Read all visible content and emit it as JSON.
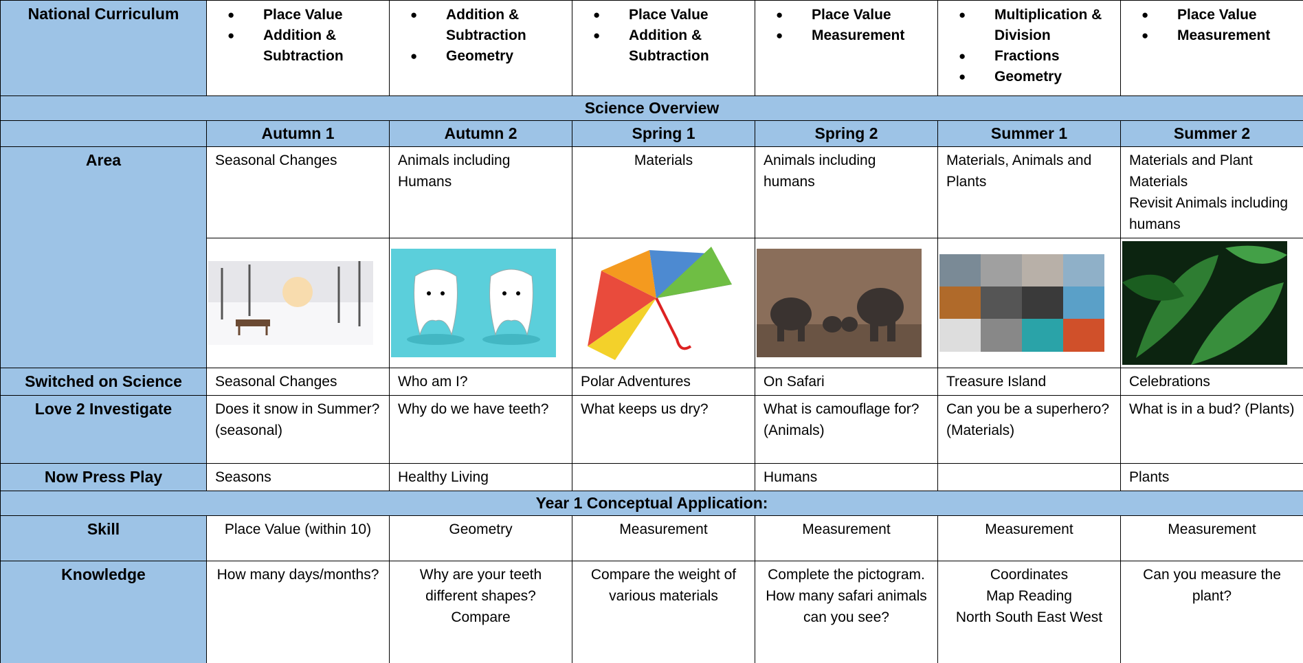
{
  "national_curriculum": {
    "label": "National Curriculum",
    "cells": [
      [
        "Place Value",
        "Addition & Subtraction"
      ],
      [
        "Addition & Subtraction",
        "Geometry"
      ],
      [
        "Place Value",
        "Addition & Subtraction"
      ],
      [
        "Place Value",
        "Measurement"
      ],
      [
        "Multiplication & Division",
        "Fractions",
        "Geometry"
      ],
      [
        "Place Value",
        "Measurement"
      ]
    ]
  },
  "science_overview": {
    "title": "Science Overview",
    "terms": [
      "Autumn 1",
      "Autumn 2",
      "Spring 1",
      "Spring 2",
      "Summer 1",
      "Summer 2"
    ],
    "rows": [
      {
        "label": "Area",
        "cells": [
          [
            "Seasonal Changes"
          ],
          [
            "Animals including Humans"
          ],
          [
            "Materials"
          ],
          [
            "Animals including humans"
          ],
          [
            "Materials, Animals and Plants"
          ],
          [
            "Materials and Plant Materials",
            "Revisit Animals including humans"
          ]
        ]
      },
      {
        "label": "Switched on Science",
        "cells": [
          [
            "Seasonal Changes"
          ],
          [
            "Who am I?"
          ],
          [
            "Polar Adventures"
          ],
          [
            "On Safari"
          ],
          [
            "Treasure Island"
          ],
          [
            "Celebrations"
          ]
        ]
      },
      {
        "label": "Love 2 Investigate",
        "cells": [
          [
            "Does it snow in Summer? (seasonal)"
          ],
          [
            "Why do we have teeth?"
          ],
          [
            "What keeps us dry?"
          ],
          [
            "What is camouflage for?",
            "(Animals)"
          ],
          [
            "Can you be a superhero?",
            "(Materials)"
          ],
          [
            "What is in a bud? (Plants)"
          ]
        ]
      },
      {
        "label": "Now Press Play",
        "cells": [
          [
            "Seasons"
          ],
          [
            "Healthy Living"
          ],
          null,
          [
            "Humans"
          ],
          null,
          [
            "Plants"
          ]
        ]
      }
    ]
  },
  "conceptual_application": {
    "title": "Year 1 Conceptual Application:",
    "rows": [
      {
        "label": "Skill",
        "cells": [
          [
            "Place Value (within 10)"
          ],
          [
            "Geometry"
          ],
          [
            "Measurement"
          ],
          [
            "Measurement"
          ],
          [
            "Measurement"
          ],
          [
            "Measurement"
          ]
        ]
      },
      {
        "label": "Knowledge",
        "cells": [
          [
            "How many days/months?"
          ],
          [
            "Why are your teeth different shapes?",
            "Compare"
          ],
          [
            "Compare the weight of various materials"
          ],
          [
            "Complete the pictogram. How many safari animals can you see?"
          ],
          [
            "Coordinates",
            "Map Reading",
            "North South East West"
          ],
          [
            "Can you measure the plant?"
          ]
        ]
      }
    ]
  }
}
